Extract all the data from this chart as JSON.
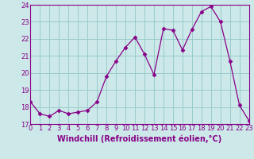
{
  "x": [
    0,
    1,
    2,
    3,
    4,
    5,
    6,
    7,
    8,
    9,
    10,
    11,
    12,
    13,
    14,
    15,
    16,
    17,
    18,
    19,
    20,
    21,
    22,
    23
  ],
  "y": [
    18.3,
    17.6,
    17.45,
    17.8,
    17.6,
    17.7,
    17.8,
    18.3,
    19.8,
    20.7,
    21.5,
    22.1,
    21.1,
    19.9,
    22.6,
    22.5,
    21.35,
    22.55,
    23.6,
    23.9,
    23.0,
    20.7,
    18.1,
    17.2
  ],
  "line_color": "#880088",
  "marker": "D",
  "marker_size": 2.5,
  "bg_color": "#cce8e8",
  "grid_color": "#99cccc",
  "xlabel": "Windchill (Refroidissement éolien,°C)",
  "ylim": [
    17,
    24
  ],
  "yticks": [
    17,
    18,
    19,
    20,
    21,
    22,
    23,
    24
  ],
  "xlim": [
    0,
    23
  ],
  "xticks": [
    0,
    1,
    2,
    3,
    4,
    5,
    6,
    7,
    8,
    9,
    10,
    11,
    12,
    13,
    14,
    15,
    16,
    17,
    18,
    19,
    20,
    21,
    22,
    23
  ],
  "xlabel_fontsize": 7,
  "tick_fontsize": 6
}
